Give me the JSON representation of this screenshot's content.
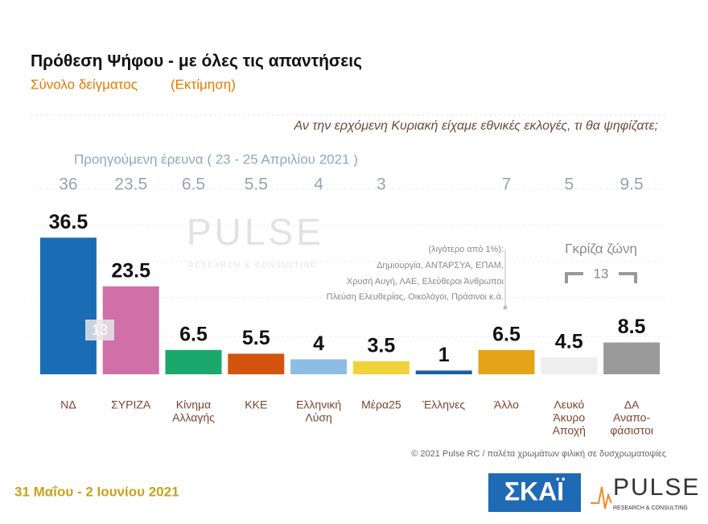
{
  "chart_data": {
    "type": "bar",
    "title": "Πρόθεση Ψήφου - με όλες τις απαντήσεις",
    "subtitle": "Σύνολο δείγματος",
    "subtitle_note": "(Εκτίμηση)",
    "question": "Αν την ερχόμενη Κυριακή είχαμε εθνικές εκλογές, τι θα ψηφίζατε;",
    "previous_label": "Προηγούμενη έρευνα  ( 23 - 25 Απριλίου 2021 )",
    "categories": [
      [
        "ΝΔ"
      ],
      [
        "ΣΥΡΙΖΑ"
      ],
      [
        "Κίνημα",
        "Αλλαγής"
      ],
      [
        "ΚΚΕ"
      ],
      [
        "Ελληνική",
        "Λύση"
      ],
      [
        "Μέρα25"
      ],
      [
        "Έλληνες"
      ],
      [
        "Άλλο"
      ],
      [
        "Λευκό",
        "Άκυρο",
        "Αποχή"
      ],
      [
        "ΔΑ",
        "Αναπο-",
        "φάσιστοι"
      ]
    ],
    "values": [
      36.5,
      23.5,
      6.5,
      5.5,
      4,
      3.5,
      1,
      6.5,
      4.5,
      8.5
    ],
    "previous_values": [
      36,
      23.5,
      6.5,
      5.5,
      4,
      3,
      null,
      7,
      5,
      9.5
    ],
    "colors": [
      "#1a6cb5",
      "#d070a8",
      "#1aa86c",
      "#d3540f",
      "#8dbde6",
      "#f2d23a",
      "#1b5d9e",
      "#e4a417",
      "#eeeeee",
      "#9a9a9a"
    ],
    "ylim": [
      0,
      40
    ],
    "annotation": "13",
    "note": [
      "(λιγότερο από 1%):",
      "Δημιουργία, ΑΝΤΑΡΣΥΑ, ΕΠΑΜ,",
      "Χρυσή Αυγή, ΛΑΕ, Ελεύθεροι Άνθρωποι",
      "Πλεύση Ελευθερίας, Οικολόγοι, Πράσινοι κ.ά."
    ],
    "grey_zone": {
      "label": "Γκρίζα ζώνη",
      "value": "13"
    },
    "footnote": "© 2021 Pulse RC  /  παλέτα χρωμάτων φιλική σε δυσχρωματοψίες"
  },
  "date": "31 Μαΐου - 2 Ιουνίου 2021",
  "logos": {
    "skai": "ΣΚΑΪ",
    "pulse": "PULSE",
    "pulse_sub": "RESEARCH & CONSULTING"
  }
}
